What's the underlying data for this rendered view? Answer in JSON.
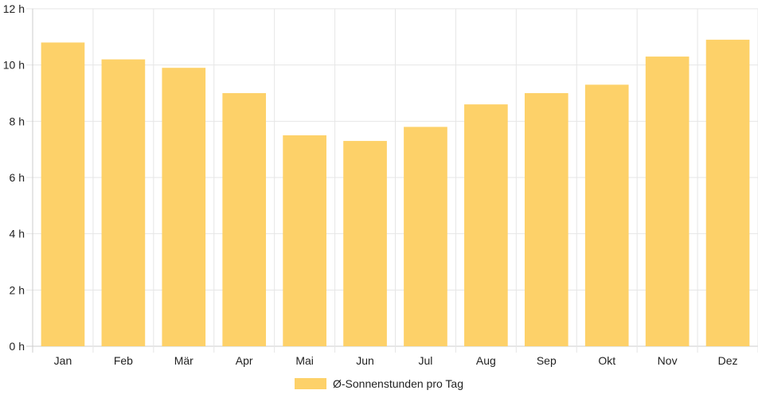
{
  "chart_data": {
    "type": "bar",
    "categories": [
      "Jan",
      "Feb",
      "Mär",
      "Apr",
      "Mai",
      "Jun",
      "Jul",
      "Aug",
      "Sep",
      "Okt",
      "Nov",
      "Dez"
    ],
    "series": [
      {
        "name": "Ø-Sonnenstunden pro Tag",
        "values": [
          10.8,
          10.2,
          9.9,
          9.0,
          7.5,
          7.3,
          7.8,
          8.6,
          9.0,
          9.3,
          10.3,
          10.9
        ],
        "color": "#fdd169"
      }
    ],
    "ylim": [
      0,
      12
    ],
    "y_ticks": [
      0,
      2,
      4,
      6,
      8,
      10,
      12
    ],
    "y_tick_suffix": " h",
    "grid": true,
    "legend_position": "bottom-center"
  },
  "colors": {
    "grid": "#e6e6e6",
    "axis": "#cccccc",
    "text": "#222222"
  }
}
